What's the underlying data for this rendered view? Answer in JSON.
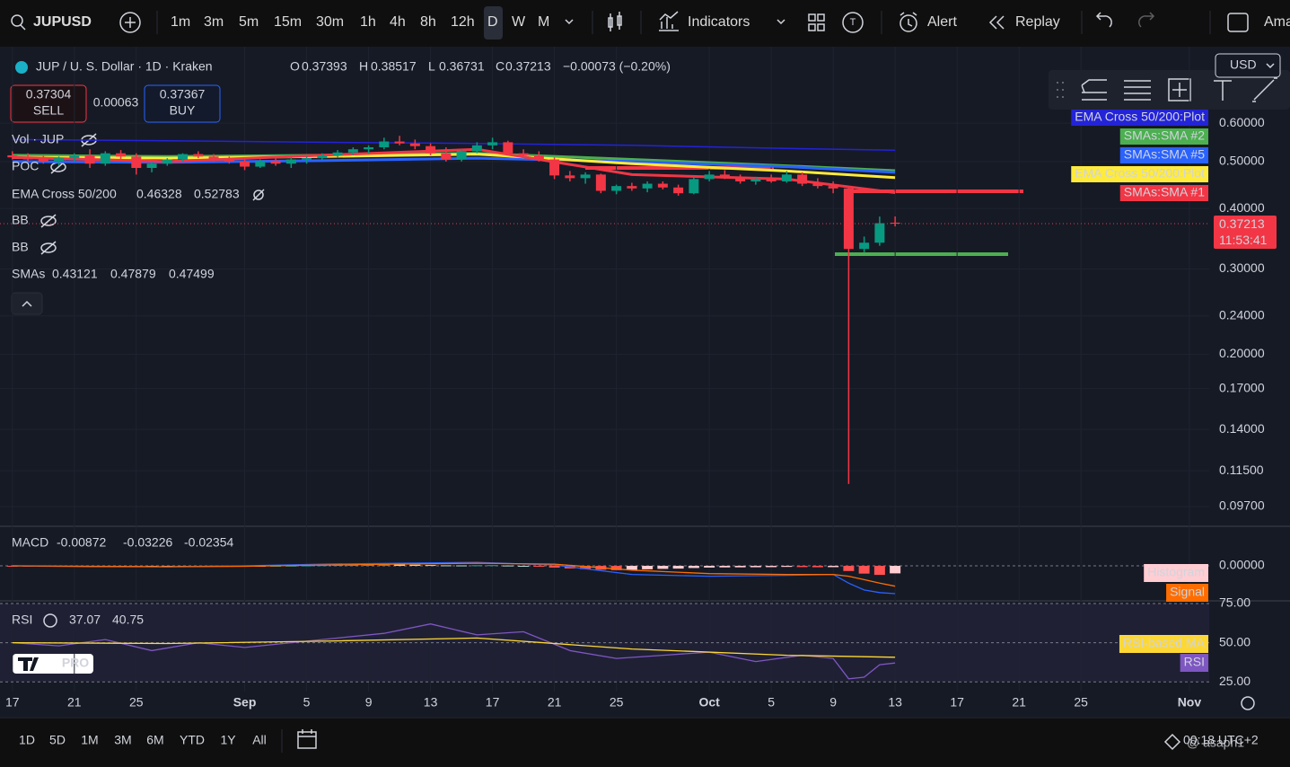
{
  "toolbar": {
    "symbol": "JUPUSD",
    "intervals": [
      "1m",
      "3m",
      "5m",
      "15m",
      "30m",
      "1h",
      "4h",
      "8h",
      "12h",
      "D",
      "W",
      "M"
    ],
    "active_interval": 9,
    "indicators": "Indicators",
    "alert": "Alert",
    "replay": "Replay",
    "account": "Ama"
  },
  "legend": {
    "ohlc_keys": [
      "O",
      "H",
      "L",
      "C"
    ],
    "change": "−0.00073 (−0.20%)",
    "sell": "0.37304",
    "sell_label": "SELL",
    "spread": "0.00063",
    "buy": "0.37367",
    "buy_label": "BUY",
    "vol": "Vol · JUP",
    "poc": "POC",
    "ema": "EMA Cross 50/200",
    "bb": [
      "BB",
      "BB"
    ],
    "smas": "SMAs"
  },
  "currency": "USD",
  "last_price_timer": "11:53:41",
  "bottom": {
    "ranges": [
      "1D",
      "5D",
      "1M",
      "3M",
      "6M",
      "YTD",
      "1Y",
      "All"
    ],
    "time": "00:18 UTC+2",
    "watermark": "@ asaph1"
  },
  "logo": "PRO",
  "chart_data": [
    {
      "type": "candlestick",
      "title": "JUP / U. S. Dollar · 1D · Kraken",
      "log": true,
      "x": [
        0,
        1,
        2,
        3,
        4,
        5,
        6,
        7,
        8,
        9,
        10,
        11,
        12,
        13,
        14,
        15,
        16,
        17,
        18,
        19,
        20,
        21,
        22,
        23,
        24,
        25,
        26,
        27,
        28,
        29,
        30,
        31,
        32,
        33,
        34,
        35,
        36,
        37,
        38,
        39,
        40,
        41,
        42,
        43,
        44,
        45,
        46,
        47,
        48,
        49,
        50,
        51,
        52,
        53,
        54,
        55,
        56,
        57
      ],
      "open": [
        0.515,
        0.51,
        0.505,
        0.5,
        0.508,
        0.515,
        0.495,
        0.52,
        0.512,
        0.485,
        0.495,
        0.505,
        0.518,
        0.512,
        0.505,
        0.5,
        0.488,
        0.502,
        0.495,
        0.505,
        0.508,
        0.515,
        0.522,
        0.53,
        0.535,
        0.55,
        0.545,
        0.538,
        0.52,
        0.505,
        0.525,
        0.54,
        0.548,
        0.52,
        0.515,
        0.505,
        0.468,
        0.462,
        0.47,
        0.435,
        0.445,
        0.44,
        0.45,
        0.442,
        0.43,
        0.46,
        0.47,
        0.465,
        0.455,
        0.46,
        0.455,
        0.47,
        0.45,
        0.445,
        0.44,
        0.33,
        0.34,
        0.37393
      ],
      "high": [
        0.525,
        0.52,
        0.515,
        0.512,
        0.52,
        0.53,
        0.525,
        0.528,
        0.52,
        0.5,
        0.508,
        0.52,
        0.525,
        0.518,
        0.512,
        0.508,
        0.505,
        0.51,
        0.51,
        0.512,
        0.52,
        0.528,
        0.535,
        0.54,
        0.56,
        0.565,
        0.555,
        0.545,
        0.535,
        0.53,
        0.548,
        0.56,
        0.552,
        0.53,
        0.525,
        0.51,
        0.478,
        0.475,
        0.472,
        0.448,
        0.452,
        0.455,
        0.455,
        0.448,
        0.465,
        0.478,
        0.48,
        0.47,
        0.465,
        0.47,
        0.478,
        0.475,
        0.462,
        0.455,
        0.445,
        0.35,
        0.385,
        0.38517
      ],
      "low": [
        0.505,
        0.5,
        0.495,
        0.49,
        0.5,
        0.485,
        0.49,
        0.505,
        0.47,
        0.475,
        0.49,
        0.5,
        0.508,
        0.5,
        0.495,
        0.48,
        0.485,
        0.49,
        0.485,
        0.495,
        0.505,
        0.51,
        0.515,
        0.52,
        0.53,
        0.54,
        0.53,
        0.515,
        0.5,
        0.5,
        0.52,
        0.53,
        0.515,
        0.51,
        0.5,
        0.46,
        0.455,
        0.45,
        0.43,
        0.428,
        0.435,
        0.432,
        0.438,
        0.425,
        0.428,
        0.455,
        0.46,
        0.45,
        0.448,
        0.452,
        0.452,
        0.445,
        0.44,
        0.43,
        0.108,
        0.325,
        0.335,
        0.36731
      ],
      "close": [
        0.51,
        0.505,
        0.5,
        0.508,
        0.515,
        0.495,
        0.52,
        0.512,
        0.485,
        0.495,
        0.505,
        0.518,
        0.512,
        0.505,
        0.5,
        0.488,
        0.502,
        0.495,
        0.505,
        0.508,
        0.515,
        0.522,
        0.53,
        0.535,
        0.55,
        0.545,
        0.538,
        0.52,
        0.505,
        0.525,
        0.54,
        0.548,
        0.52,
        0.515,
        0.505,
        0.468,
        0.462,
        0.47,
        0.435,
        0.445,
        0.44,
        0.45,
        0.442,
        0.43,
        0.46,
        0.47,
        0.465,
        0.455,
        0.46,
        0.455,
        0.47,
        0.45,
        0.445,
        0.44,
        0.33,
        0.34,
        0.373,
        0.37213
      ],
      "up_color": "#089981",
      "down_color": "#f23645",
      "series": [
        {
          "name": "EMA Cross 50/200:Plot",
          "color": "#2323d8",
          "x": [
            0,
            10,
            20,
            30,
            40,
            50,
            57
          ],
          "values": [
            0.555,
            0.552,
            0.548,
            0.545,
            0.54,
            0.532,
            0.52783
          ]
        },
        {
          "name": "SMAs:SMA #2",
          "color": "#4caf50",
          "x": [
            0,
            10,
            20,
            30,
            40,
            50,
            57
          ],
          "values": [
            0.515,
            0.512,
            0.515,
            0.52,
            0.505,
            0.49,
            0.47879
          ]
        },
        {
          "name": "SMAs:SMA #5",
          "color": "#2962ff",
          "x": [
            0,
            10,
            20,
            30,
            40,
            50,
            57
          ],
          "values": [
            0.5,
            0.498,
            0.502,
            0.508,
            0.5,
            0.488,
            0.47499
          ]
        },
        {
          "name": "EMA Cross 50/200:Plot",
          "color": "#ffeb3b",
          "x": [
            0,
            10,
            20,
            30,
            40,
            50,
            57
          ],
          "values": [
            0.51,
            0.508,
            0.512,
            0.518,
            0.495,
            0.478,
            0.46328
          ]
        },
        {
          "name": "SMAs:SMA #1",
          "color": "#f23645",
          "x": [
            0,
            10,
            20,
            30,
            40,
            50,
            57
          ],
          "values": [
            0.51,
            0.5,
            0.515,
            0.53,
            0.47,
            0.46,
            0.43121
          ]
        }
      ],
      "xlim": [
        -0.8,
        77.28
      ],
      "xticks": [
        {
          "value": 0,
          "label": "17"
        },
        {
          "value": 4,
          "label": "21"
        },
        {
          "value": 8,
          "label": "25"
        },
        {
          "value": 15,
          "label": "Sep"
        },
        {
          "value": 19,
          "label": "5"
        },
        {
          "value": 23,
          "label": "9"
        },
        {
          "value": 27,
          "label": "13"
        },
        {
          "value": 31,
          "label": "17"
        },
        {
          "value": 35,
          "label": "21"
        },
        {
          "value": 39,
          "label": "25"
        },
        {
          "value": 45,
          "label": "Oct"
        },
        {
          "value": 49,
          "label": "5"
        },
        {
          "value": 53,
          "label": "9"
        },
        {
          "value": 57,
          "label": "13"
        },
        {
          "value": 61,
          "label": "17"
        },
        {
          "value": 65,
          "label": "21"
        },
        {
          "value": 69,
          "label": "25"
        },
        {
          "value": 76,
          "label": "Nov"
        }
      ],
      "ylim": [
        0.0887,
        0.834
      ],
      "yticks": [
        {
          "value": 0.6,
          "label": "0.60000"
        },
        {
          "value": 0.5,
          "label": "0.50000"
        },
        {
          "value": 0.4,
          "label": "0.40000"
        },
        {
          "value": 0.3,
          "label": "0.30000"
        },
        {
          "value": 0.24,
          "label": "0.24000"
        },
        {
          "value": 0.2,
          "label": "0.20000"
        },
        {
          "value": 0.17,
          "label": "0.17000"
        },
        {
          "value": 0.14,
          "label": "0.14000"
        },
        {
          "value": 0.115,
          "label": "0.11500"
        },
        {
          "value": 0.097,
          "label": "0.09700"
        }
      ],
      "grid": true
    },
    {
      "type": "macd",
      "title": "MACD",
      "x": [
        0,
        5,
        10,
        15,
        20,
        25,
        30,
        35,
        40,
        45,
        50,
        53,
        54,
        55,
        56,
        57
      ],
      "macd": {
        "color": "#2962ff",
        "values": [
          0,
          -0.001,
          -0.001,
          0,
          0.002,
          0.003,
          0.004,
          0.001,
          -0.01,
          -0.012,
          -0.011,
          -0.01,
          -0.02,
          -0.028,
          -0.031,
          -0.03226
        ]
      },
      "signal": {
        "name": "Signal",
        "color": "#ff6d00",
        "values": [
          0,
          -0.0005,
          -0.001,
          -0.0005,
          0.001,
          0.002,
          0.003,
          0.002,
          -0.005,
          -0.009,
          -0.01,
          -0.01,
          -0.012,
          -0.016,
          -0.02,
          -0.02354
        ]
      },
      "histogram": {
        "name": "Histogram",
        "color": "#ffcdd2",
        "values": [
          -0.001,
          -0.001,
          -0.0008,
          -0.0005,
          -0.0003,
          -0.0006,
          -0.0004,
          -0.0002,
          -0.0008,
          -0.0007,
          -0.0005,
          -0.0002,
          0,
          0.0002,
          0.0001,
          -0.0003,
          -0.0002,
          0,
          0.0002,
          0.0005,
          0.0008,
          0.001,
          0.0013,
          0.0015,
          0.0018,
          0.0016,
          0.0013,
          0.001,
          0.0006,
          0.0005,
          0.0007,
          0.0008,
          0.0004,
          0,
          -0.0004,
          -0.002,
          -0.003,
          -0.0038,
          -0.0045,
          -0.005,
          -0.0046,
          -0.004,
          -0.0035,
          -0.0032,
          -0.0025,
          -0.002,
          -0.0018,
          -0.0017,
          -0.0016,
          -0.0015,
          -0.0012,
          -0.0014,
          -0.0016,
          -0.0015,
          -0.006,
          -0.009,
          -0.0105,
          -0.00872
        ]
      },
      "ylim": [
        -0.0395,
        0.0437
      ],
      "yticks": [
        {
          "value": 0,
          "label": "0.00000"
        }
      ]
    },
    {
      "type": "line",
      "title": "RSI",
      "series": [
        {
          "name": "RSI",
          "color": "#7e57c2",
          "x": [
            0,
            3,
            6,
            9,
            12,
            15,
            18,
            21,
            24,
            27,
            30,
            33,
            36,
            39,
            42,
            45,
            48,
            51,
            53,
            54,
            55,
            56,
            57
          ],
          "values": [
            50,
            48,
            52,
            45,
            50,
            47,
            50,
            53,
            56,
            62,
            55,
            57,
            45,
            40,
            42,
            44,
            38,
            42,
            40,
            27,
            28,
            36,
            37.07
          ]
        },
        {
          "name": "RSI-based MA",
          "color": "#fdd835",
          "x": [
            0,
            10,
            20,
            30,
            40,
            50,
            57
          ],
          "values": [
            50,
            49.5,
            51,
            53,
            46,
            42,
            40.75
          ]
        }
      ],
      "ylim": [
        20,
        75
      ],
      "yticks": [
        {
          "value": 75,
          "label": "75.00"
        },
        {
          "value": 50,
          "label": "50.00"
        },
        {
          "value": 25,
          "label": "25.00"
        }
      ]
    }
  ]
}
